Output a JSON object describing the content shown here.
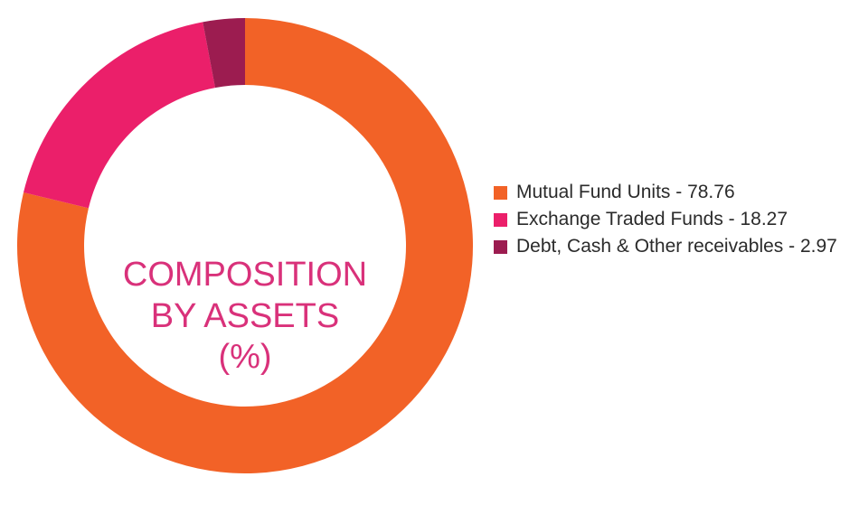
{
  "chart_data": {
    "type": "pie",
    "title_lines": [
      "COMPOSITION",
      "BY ASSETS",
      "(%)"
    ],
    "slices": [
      {
        "label": "Mutual Fund Units - 78.76",
        "value": 78.76,
        "color": "#f26227"
      },
      {
        "label": "Exchange Traded Funds - 18.27",
        "value": 18.27,
        "color": "#eb1f6a"
      },
      {
        "label": "Debt, Cash & Other receivables - 2.97",
        "value": 2.97,
        "color": "#9c1c50"
      }
    ],
    "legend_position": "right"
  }
}
